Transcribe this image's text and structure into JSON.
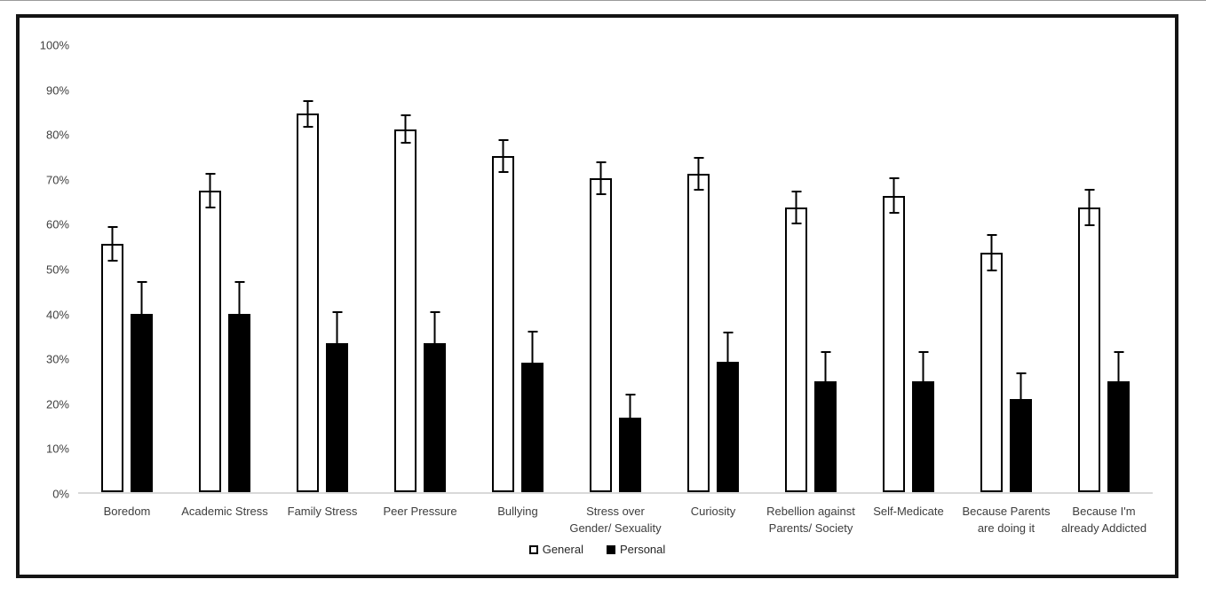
{
  "chart_data": {
    "type": "bar",
    "title": "",
    "xlabel": "",
    "ylabel": "",
    "ylim": [
      0,
      100
    ],
    "grid": "off",
    "legend_position": "bottom",
    "y_ticks": [
      "0%",
      "10%",
      "20%",
      "30%",
      "40%",
      "50%",
      "60%",
      "70%",
      "80%",
      "90%",
      "100%"
    ],
    "categories": [
      "Boredom",
      "Academic Stress",
      "Family Stress",
      "Peer Pressure",
      "Bullying",
      "Stress over Gender/ Sexuality",
      "Curiosity",
      "Rebellion against Parents/ Society",
      "Self-Medicate",
      "Because Parents are doing it",
      "Because I'm already Addicted"
    ],
    "series": [
      {
        "name": "General",
        "fill": "#ffffff",
        "stroke": "#000000",
        "values": [
          55.3,
          67.2,
          84.3,
          80.9,
          74.9,
          70.0,
          71.0,
          63.4,
          66.1,
          53.4,
          63.4
        ],
        "error_bars": [
          3.9,
          3.9,
          3.0,
          3.2,
          3.7,
          3.7,
          3.8,
          3.8,
          4.0,
          4.1,
          4.1
        ]
      },
      {
        "name": "Personal",
        "fill": "#000000",
        "stroke": "#000000",
        "values": [
          39.8,
          39.8,
          33.2,
          33.2,
          28.9,
          16.6,
          29.0,
          24.8,
          24.8,
          20.7,
          24.8
        ],
        "error_bars": [
          7.2,
          7.3,
          7.2,
          7.2,
          7.0,
          5.3,
          6.7,
          6.6,
          6.6,
          5.9,
          6.6
        ]
      }
    ],
    "axis_line_color": "#d9d9d9",
    "label_color": "#404040"
  }
}
